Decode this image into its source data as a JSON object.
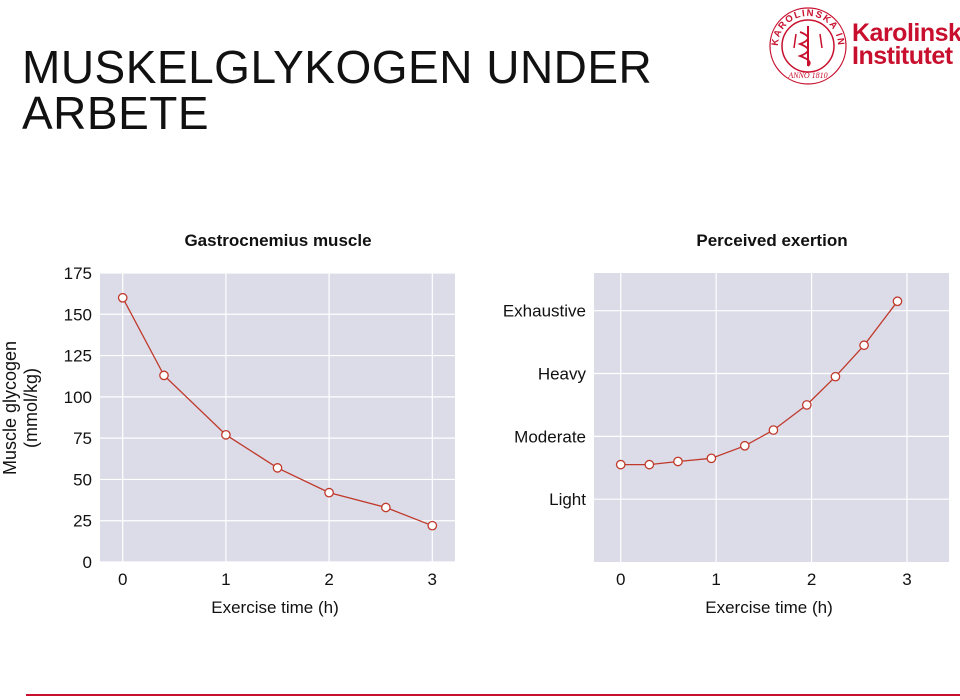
{
  "slide": {
    "title": "MUSKELGLYKOGEN UNDER ARBETE"
  },
  "logo": {
    "line1": "Karolinska",
    "line2": "Institutet",
    "seal_text": "KAROLINSKA INSTITUTET · ANNO 1810"
  },
  "colors": {
    "accent": "#c8102e",
    "plot_bg": "#dcdce8",
    "grid": "#ffffff",
    "line": "#c0392b"
  },
  "chart_data": [
    {
      "type": "line",
      "title": "Gastrocnemius muscle",
      "xlabel": "Exercise time (h)",
      "ylabel": "Muscle glycogen (mmol/kg)",
      "xlim": [
        -0.22,
        3.22
      ],
      "ylim": [
        0,
        175
      ],
      "xticks": [
        "0",
        "1",
        "2",
        "3"
      ],
      "yticks": [
        "0",
        "25",
        "50",
        "75",
        "100",
        "125",
        "150",
        "175"
      ],
      "grid": true,
      "series": [
        {
          "x": [
            0.0,
            0.4,
            1.0,
            1.5,
            2.0,
            2.55,
            3.0
          ],
          "y": [
            160,
            113,
            77,
            57,
            42,
            33,
            22
          ]
        }
      ]
    },
    {
      "type": "line",
      "title": "Perceived exertion",
      "xlabel": "Exercise time (h)",
      "ylabel": "",
      "xlim": [
        -0.28,
        3.44
      ],
      "ylim": [
        0,
        4.6
      ],
      "xticks": [
        "0",
        "1",
        "2",
        "3"
      ],
      "ycategories": [
        "Light",
        "Moderate",
        "Heavy",
        "Exhaustive"
      ],
      "grid": true,
      "series": [
        {
          "x": [
            0.0,
            0.3,
            0.6,
            0.95,
            1.3,
            1.6,
            1.95,
            2.25,
            2.55,
            2.9
          ],
          "y": [
            1.55,
            1.55,
            1.6,
            1.65,
            1.85,
            2.1,
            2.5,
            2.95,
            3.45,
            4.15
          ]
        }
      ]
    }
  ]
}
